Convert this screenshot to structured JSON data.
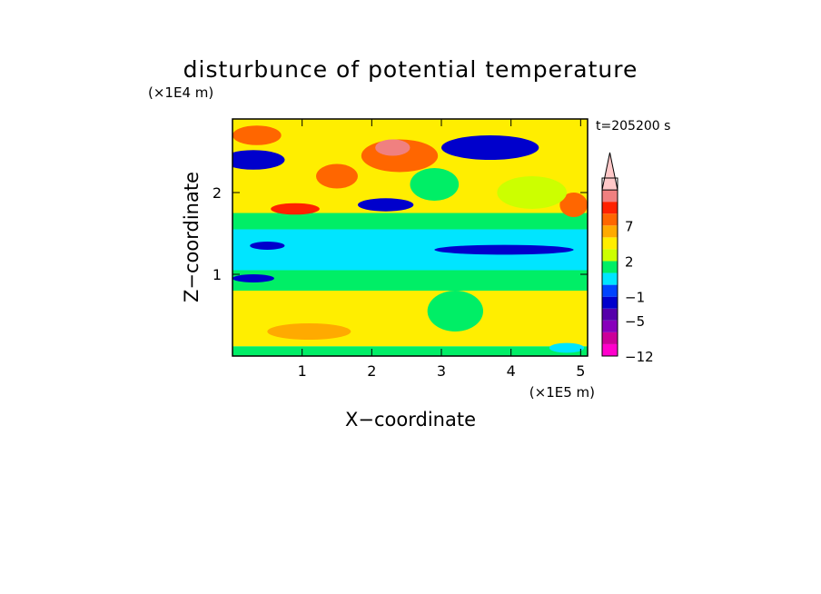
{
  "chart_data": {
    "type": "heatmap",
    "title": "disturbunce of potential temperature",
    "time_label": "t=205200 s",
    "xlabel": "X−coordinate",
    "ylabel": "Z−coordinate",
    "x_unit": "(×1E5 m)",
    "y_unit": "(×1E4 m)",
    "xlim": [
      0,
      5.1
    ],
    "ylim": [
      0,
      2.9
    ],
    "x_ticks": [
      {
        "value": 1,
        "label": "1"
      },
      {
        "value": 2,
        "label": "2"
      },
      {
        "value": 3,
        "label": "3"
      },
      {
        "value": 4,
        "label": "4"
      },
      {
        "value": 5,
        "label": "5"
      }
    ],
    "y_ticks": [
      {
        "value": 1,
        "label": "1"
      },
      {
        "value": 2,
        "label": "2"
      }
    ],
    "colorbar": {
      "levels": [
        -12,
        -9,
        -7,
        -5,
        -3,
        -1,
        0,
        1,
        2,
        3,
        5,
        7,
        9,
        12
      ],
      "colors": [
        "#ff00cc",
        "#cc0099",
        "#8800bb",
        "#5500aa",
        "#0000cc",
        "#0044ff",
        "#00e5ff",
        "#00ee66",
        "#ccff00",
        "#ffee00",
        "#ffaa00",
        "#ff6600",
        "#ff2200",
        "#f08080",
        "#ffc8c8"
      ],
      "labels": [
        {
          "level": 7,
          "text": "7"
        },
        {
          "level": 2,
          "text": "2"
        },
        {
          "level": -1,
          "text": "−1"
        },
        {
          "level": -5,
          "text": "−5"
        },
        {
          "level": -12,
          "text": "−12"
        }
      ]
    },
    "field_bands": [
      {
        "z_range": [
          0,
          0.12
        ],
        "value": 0.5
      },
      {
        "z_range": [
          0.12,
          0.8
        ],
        "value": 2.5
      },
      {
        "z_range": [
          0.8,
          1.05
        ],
        "value": 0.5
      },
      {
        "z_range": [
          1.05,
          1.55
        ],
        "value": -0.5
      },
      {
        "z_range": [
          1.55,
          1.75
        ],
        "value": 0.5
      },
      {
        "z_range": [
          1.75,
          2.9
        ],
        "value": 2.5
      }
    ],
    "field_blobs": [
      {
        "x": 0.3,
        "z": 2.4,
        "rx": 0.45,
        "rz": 0.12,
        "value": -5
      },
      {
        "x": 0.9,
        "z": 1.8,
        "rx": 0.35,
        "rz": 0.07,
        "value": 8
      },
      {
        "x": 2.4,
        "z": 2.45,
        "rx": 0.55,
        "rz": 0.2,
        "value": 6
      },
      {
        "x": 2.3,
        "z": 2.55,
        "rx": 0.25,
        "rz": 0.1,
        "value": 10
      },
      {
        "x": 2.2,
        "z": 1.85,
        "rx": 0.4,
        "rz": 0.08,
        "value": -5
      },
      {
        "x": 3.7,
        "z": 2.55,
        "rx": 0.7,
        "rz": 0.15,
        "value": -4
      },
      {
        "x": 3.9,
        "z": 1.3,
        "rx": 1.0,
        "rz": 0.06,
        "value": -5
      },
      {
        "x": 0.3,
        "z": 0.95,
        "rx": 0.3,
        "rz": 0.05,
        "value": -5
      },
      {
        "x": 0.5,
        "z": 1.35,
        "rx": 0.25,
        "rz": 0.05,
        "value": -5
      },
      {
        "x": 0.35,
        "z": 2.7,
        "rx": 0.35,
        "rz": 0.12,
        "value": 5
      },
      {
        "x": 4.9,
        "z": 1.85,
        "rx": 0.2,
        "rz": 0.15,
        "value": 5
      },
      {
        "x": 1.5,
        "z": 2.2,
        "rx": 0.3,
        "rz": 0.15,
        "value": 5
      },
      {
        "x": 2.9,
        "z": 2.1,
        "rx": 0.35,
        "rz": 0.2,
        "value": 0.5
      },
      {
        "x": 4.3,
        "z": 2.0,
        "rx": 0.5,
        "rz": 0.2,
        "value": 1.5
      },
      {
        "x": 3.2,
        "z": 0.55,
        "rx": 0.4,
        "rz": 0.25,
        "value": 0.5
      },
      {
        "x": 1.1,
        "z": 0.3,
        "rx": 0.6,
        "rz": 0.1,
        "value": 3.5
      },
      {
        "x": 4.8,
        "z": 0.1,
        "rx": 0.25,
        "rz": 0.06,
        "value": -0.5
      }
    ]
  }
}
